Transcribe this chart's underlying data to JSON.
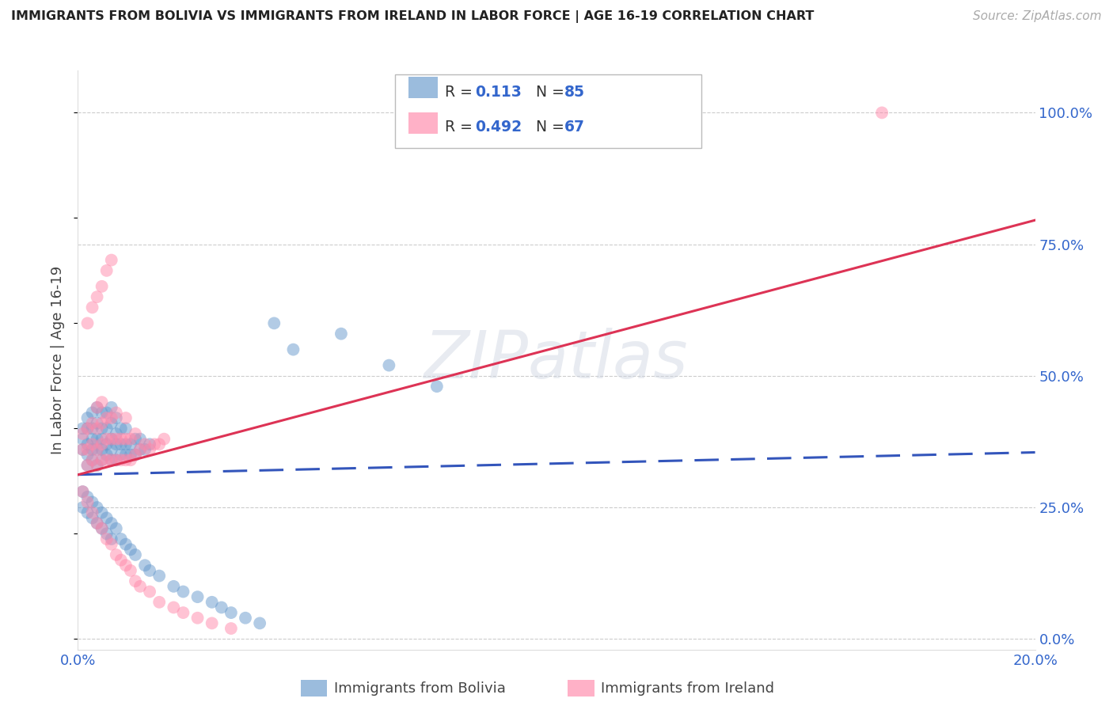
{
  "title": "IMMIGRANTS FROM BOLIVIA VS IMMIGRANTS FROM IRELAND IN LABOR FORCE | AGE 16-19 CORRELATION CHART",
  "source": "Source: ZipAtlas.com",
  "ylabel": "In Labor Force | Age 16-19",
  "xlim": [
    0.0,
    0.2
  ],
  "ylim": [
    -0.02,
    1.08
  ],
  "bolivia_color": "#6699cc",
  "ireland_color": "#ff88aa",
  "bolivia_R": 0.113,
  "bolivia_N": 85,
  "ireland_R": 0.492,
  "ireland_N": 67,
  "bolivia_trend_color": "#3355bb",
  "ireland_trend_color": "#dd3355",
  "yticks_right": [
    0.0,
    0.25,
    0.5,
    0.75,
    1.0
  ],
  "ytick_labels_right": [
    "0.0%",
    "25.0%",
    "50.0%",
    "75.0%",
    "100.0%"
  ],
  "grid_color": "#cccccc",
  "legend_label_bolivia": "Immigrants from Bolivia",
  "legend_label_ireland": "Immigrants from Ireland",
  "bolivia_x": [
    0.001,
    0.001,
    0.001,
    0.002,
    0.002,
    0.002,
    0.002,
    0.002,
    0.003,
    0.003,
    0.003,
    0.003,
    0.003,
    0.004,
    0.004,
    0.004,
    0.004,
    0.004,
    0.005,
    0.005,
    0.005,
    0.005,
    0.005,
    0.006,
    0.006,
    0.006,
    0.006,
    0.007,
    0.007,
    0.007,
    0.007,
    0.007,
    0.008,
    0.008,
    0.008,
    0.008,
    0.009,
    0.009,
    0.009,
    0.01,
    0.01,
    0.01,
    0.011,
    0.011,
    0.012,
    0.012,
    0.013,
    0.013,
    0.014,
    0.015,
    0.001,
    0.001,
    0.002,
    0.002,
    0.003,
    0.003,
    0.004,
    0.004,
    0.005,
    0.005,
    0.006,
    0.006,
    0.007,
    0.007,
    0.008,
    0.009,
    0.01,
    0.011,
    0.012,
    0.014,
    0.015,
    0.017,
    0.02,
    0.022,
    0.025,
    0.028,
    0.03,
    0.032,
    0.035,
    0.038,
    0.041,
    0.045,
    0.055,
    0.065,
    0.075
  ],
  "bolivia_y": [
    0.36,
    0.38,
    0.4,
    0.33,
    0.35,
    0.37,
    0.4,
    0.42,
    0.34,
    0.36,
    0.38,
    0.4,
    0.43,
    0.33,
    0.36,
    0.38,
    0.41,
    0.44,
    0.34,
    0.36,
    0.38,
    0.4,
    0.43,
    0.35,
    0.37,
    0.4,
    0.43,
    0.34,
    0.36,
    0.38,
    0.41,
    0.44,
    0.34,
    0.37,
    0.39,
    0.42,
    0.35,
    0.37,
    0.4,
    0.35,
    0.37,
    0.4,
    0.35,
    0.37,
    0.35,
    0.38,
    0.36,
    0.38,
    0.36,
    0.37,
    0.28,
    0.25,
    0.27,
    0.24,
    0.26,
    0.23,
    0.25,
    0.22,
    0.24,
    0.21,
    0.23,
    0.2,
    0.22,
    0.19,
    0.21,
    0.19,
    0.18,
    0.17,
    0.16,
    0.14,
    0.13,
    0.12,
    0.1,
    0.09,
    0.08,
    0.07,
    0.06,
    0.05,
    0.04,
    0.03,
    0.6,
    0.55,
    0.58,
    0.52,
    0.48
  ],
  "ireland_x": [
    0.001,
    0.001,
    0.002,
    0.002,
    0.002,
    0.003,
    0.003,
    0.003,
    0.004,
    0.004,
    0.004,
    0.004,
    0.005,
    0.005,
    0.005,
    0.005,
    0.006,
    0.006,
    0.006,
    0.007,
    0.007,
    0.007,
    0.008,
    0.008,
    0.008,
    0.009,
    0.009,
    0.01,
    0.01,
    0.01,
    0.011,
    0.011,
    0.012,
    0.012,
    0.013,
    0.014,
    0.015,
    0.016,
    0.017,
    0.018,
    0.001,
    0.002,
    0.003,
    0.004,
    0.005,
    0.006,
    0.007,
    0.008,
    0.009,
    0.01,
    0.011,
    0.012,
    0.013,
    0.015,
    0.017,
    0.02,
    0.022,
    0.025,
    0.028,
    0.032,
    0.002,
    0.003,
    0.004,
    0.005,
    0.006,
    0.007,
    0.168
  ],
  "ireland_y": [
    0.36,
    0.39,
    0.33,
    0.36,
    0.4,
    0.34,
    0.37,
    0.41,
    0.33,
    0.36,
    0.4,
    0.44,
    0.34,
    0.37,
    0.41,
    0.45,
    0.34,
    0.38,
    0.42,
    0.34,
    0.38,
    0.42,
    0.34,
    0.38,
    0.43,
    0.34,
    0.38,
    0.34,
    0.38,
    0.42,
    0.34,
    0.38,
    0.35,
    0.39,
    0.36,
    0.37,
    0.36,
    0.37,
    0.37,
    0.38,
    0.28,
    0.26,
    0.24,
    0.22,
    0.21,
    0.19,
    0.18,
    0.16,
    0.15,
    0.14,
    0.13,
    0.11,
    0.1,
    0.09,
    0.07,
    0.06,
    0.05,
    0.04,
    0.03,
    0.02,
    0.6,
    0.63,
    0.65,
    0.67,
    0.7,
    0.72,
    1.0
  ]
}
